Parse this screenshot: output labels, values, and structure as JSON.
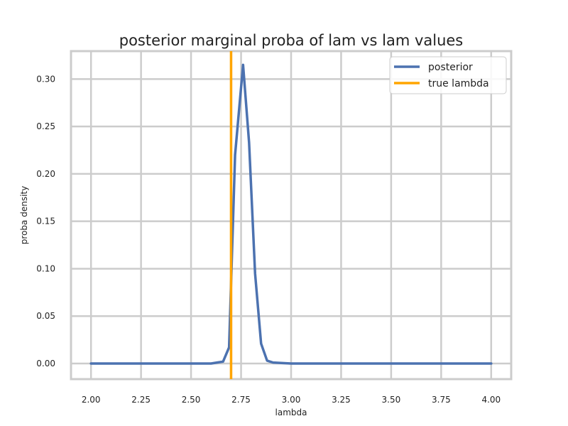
{
  "chart_data": {
    "type": "line",
    "title": "posterior marginal proba of lam vs lam values",
    "xlabel": "lambda",
    "ylabel": "proba density",
    "xlim": [
      1.9,
      4.1
    ],
    "ylim": [
      -0.0165,
      0.3295
    ],
    "grid": true,
    "legend_position": "top-right",
    "xticks": [
      "2.00",
      "2.25",
      "2.50",
      "2.75",
      "3.00",
      "3.25",
      "3.50",
      "3.75",
      "4.00"
    ],
    "yticks": [
      "0.00",
      "0.05",
      "0.10",
      "0.15",
      "0.20",
      "0.25",
      "0.30"
    ],
    "series": [
      {
        "name": "posterior",
        "color": "#4c72b0",
        "x": [
          2.0,
          2.6,
          2.63,
          2.66,
          2.69,
          2.72,
          2.76,
          2.79,
          2.82,
          2.85,
          2.88,
          2.91,
          3.0,
          3.5,
          4.0
        ],
        "y": [
          0.0,
          0.0,
          0.001,
          0.002,
          0.017,
          0.22,
          0.315,
          0.233,
          0.095,
          0.021,
          0.003,
          0.001,
          0.0,
          0.0,
          0.0
        ]
      }
    ],
    "vlines": [
      {
        "name": "true lambda",
        "x": 2.7,
        "color": "#ffa500"
      }
    ]
  }
}
